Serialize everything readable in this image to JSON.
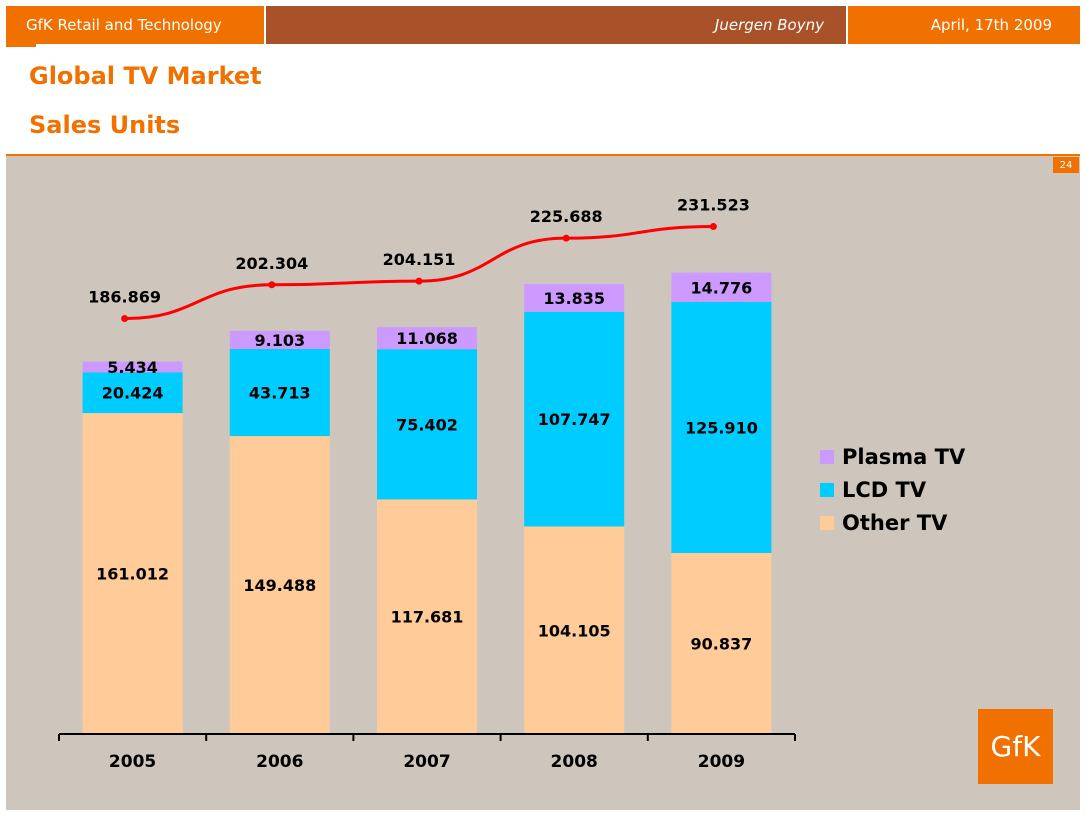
{
  "header": {
    "company": "GfK Retail and Technology",
    "author": "Juergen Boyny",
    "date": "April, 17th 2009"
  },
  "slide": {
    "title": "Global TV Market",
    "subtitle": "Sales Units",
    "page_number": "24",
    "logo_text": "GfK"
  },
  "colors": {
    "accent": "#f07000",
    "header_mid": "#a9522a",
    "panel": "#cec6bd",
    "plasma": "#cc99ff",
    "lcd": "#00ccff",
    "other": "#ffcc99",
    "total_line": "#ff0000"
  },
  "chart_data": {
    "type": "bar",
    "stacked": true,
    "categories": [
      "2005",
      "2006",
      "2007",
      "2008",
      "2009"
    ],
    "series": [
      {
        "name": "Other TV",
        "values": [
          161.012,
          149.488,
          117.681,
          104.105,
          90.837
        ],
        "labels": [
          "161.012",
          "149.488",
          "117.681",
          "104.105",
          "90.837"
        ]
      },
      {
        "name": "LCD TV",
        "values": [
          20.424,
          43.713,
          75.402,
          107.747,
          125.91
        ],
        "labels": [
          "20.424",
          "43.713",
          "75.402",
          "107.747",
          "125.910"
        ]
      },
      {
        "name": "Plasma TV",
        "values": [
          5.434,
          9.103,
          11.068,
          13.835,
          14.776
        ],
        "labels": [
          "5.434",
          "9.103",
          "11.068",
          "13.835",
          "14.776"
        ]
      }
    ],
    "totals": {
      "type": "line",
      "values": [
        186.869,
        202.304,
        204.151,
        225.688,
        231.523
      ],
      "labels": [
        "186.869",
        "202.304",
        "204.151",
        "225.688",
        "231.523"
      ]
    },
    "ylim": [
      0,
      290
    ],
    "legend": {
      "position": "right",
      "order": [
        "Plasma TV",
        "LCD TV",
        "Other TV"
      ]
    },
    "grid": false
  }
}
